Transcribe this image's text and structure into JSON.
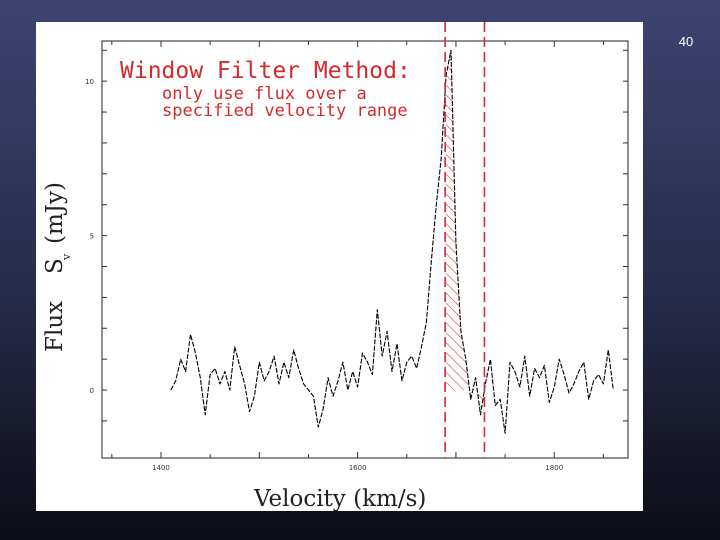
{
  "slide": {
    "number": "40"
  },
  "chart_data": {
    "type": "line",
    "title": "Window Filter Method:",
    "annotation_lines": [
      "only use flux over a",
      "specified velocity range"
    ],
    "xlabel": "Velocity (km/s)",
    "ylabel": "Flux   S_v (mJy)",
    "ylabel_text": "Flux",
    "ylabel_symbol": "S",
    "ylabel_sub": "v",
    "ylabel_unit": "(mJy)",
    "x_ticks": [
      {
        "value": 1400,
        "label": "1400"
      },
      {
        "value": 1600,
        "label": "1600"
      },
      {
        "value": 1800,
        "label": "1800"
      }
    ],
    "y_ticks": [
      {
        "value": 0,
        "label": "0"
      },
      {
        "value": 5,
        "label": "5"
      },
      {
        "value": 10,
        "label": "10"
      }
    ],
    "xlim": [
      1340,
      1875
    ],
    "ylim": [
      -2.2,
      11.3
    ],
    "window": {
      "start": 1689,
      "end": 1729
    },
    "window_color": "#d42a2a",
    "series": [
      {
        "line_color": "#000000",
        "x": [
          1410,
          1415,
          1420,
          1425,
          1430,
          1435,
          1440,
          1445,
          1450,
          1455,
          1460,
          1465,
          1470,
          1475,
          1480,
          1485,
          1490,
          1495,
          1500,
          1505,
          1510,
          1515,
          1520,
          1525,
          1530,
          1535,
          1540,
          1545,
          1550,
          1555,
          1560,
          1565,
          1570,
          1575,
          1580,
          1585,
          1590,
          1595,
          1600,
          1605,
          1610,
          1615,
          1620,
          1625,
          1630,
          1635,
          1640,
          1645,
          1650,
          1655,
          1660,
          1665,
          1670,
          1675,
          1680,
          1685,
          1690,
          1695,
          1700,
          1705,
          1710,
          1715,
          1720,
          1725,
          1730,
          1735,
          1740,
          1745,
          1750,
          1755,
          1760,
          1765,
          1770,
          1775,
          1780,
          1785,
          1790,
          1795,
          1800,
          1805,
          1810,
          1815,
          1820,
          1825,
          1830,
          1835,
          1840,
          1845,
          1850,
          1855,
          1860
        ],
        "y": [
          0.0,
          0.3,
          1.0,
          0.6,
          1.8,
          1.2,
          0.4,
          -0.8,
          0.5,
          0.7,
          0.2,
          0.6,
          0.0,
          1.4,
          0.8,
          0.2,
          -0.7,
          -0.2,
          0.9,
          0.3,
          0.6,
          1.1,
          0.2,
          0.9,
          0.4,
          1.3,
          0.7,
          0.2,
          0.0,
          -0.2,
          -1.2,
          -0.6,
          0.4,
          -0.2,
          0.3,
          0.9,
          0.0,
          0.6,
          0.1,
          1.2,
          0.9,
          0.5,
          2.6,
          1.1,
          1.9,
          0.6,
          1.5,
          0.3,
          0.9,
          1.1,
          0.7,
          1.4,
          2.2,
          4.2,
          6.0,
          7.5,
          10.2,
          11.0,
          4.8,
          1.9,
          1.0,
          -0.3,
          0.4,
          -0.8,
          0.2,
          1.0,
          -0.5,
          -0.3,
          -1.4,
          0.9,
          0.6,
          0.1,
          1.1,
          -0.2,
          0.7,
          0.4,
          0.8,
          -0.4,
          0.1,
          1.0,
          0.5,
          -0.1,
          0.2,
          0.6,
          0.9,
          -0.3,
          0.3,
          0.5,
          0.2,
          1.3,
          0.0
        ],
        "window_index_range": [
          56,
          64
        ]
      }
    ]
  }
}
